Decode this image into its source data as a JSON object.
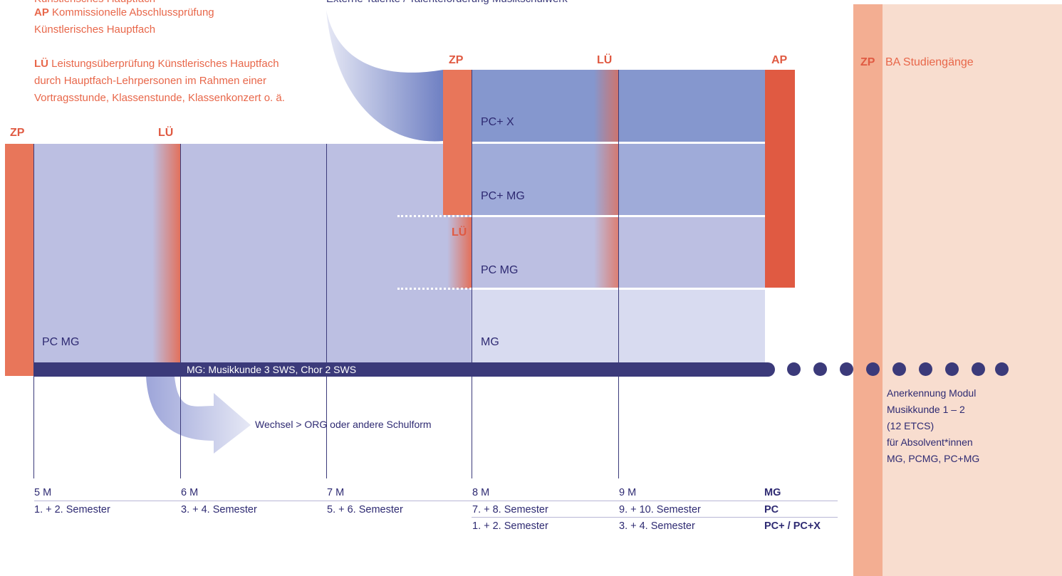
{
  "legend": {
    "line0": "Künstlerisches Hauptfach",
    "ap_abbr": "AP",
    "ap_text": "Kommissionelle Abschlussprüfung",
    "ap_text2": "Künstlerisches Hauptfach",
    "lu_abbr": "LÜ",
    "lu_text": "Leistungsüberprüfung Künstlerisches Hauptfach",
    "lu_text2": "durch Hauptfach-Lehrpersonen im Rahmen einer",
    "lu_text3": "Vortragsstunde, Klassenstunde, Klassenkonzert o. ä."
  },
  "external_label": "Externe Talente / Talenteförderung Musikschulwerk",
  "markers": {
    "zp_left": "ZP",
    "lu_left": "LÜ",
    "zp_mid": "ZP",
    "lu_top": "LÜ",
    "ap": "AP",
    "lu_small": "LÜ",
    "zp_ba": "ZP",
    "ba_label": "BA Studiengänge"
  },
  "cells": {
    "pcx": "PC+ X",
    "pcmg_plus": "PC+ MG",
    "pcmg": "PC MG",
    "mg": "MG",
    "pcmg_left": "PC MG"
  },
  "band": "MG: Musikkunde 3 SWS, Chor 2 SWS",
  "wechsel": "Wechsel > ORG oder andere Schulform",
  "ba_note": [
    "Anerkennung Modul",
    "Musikkunde 1 – 2",
    "(12 ETCS)",
    "für Absolvent*innen",
    "MG, PCMG, PC+MG"
  ],
  "axis": {
    "levels": [
      "5 M",
      "6 M",
      "7 M",
      "8 M",
      "9 M"
    ],
    "semesters": [
      "1. + 2. Semester",
      "3. + 4. Semester",
      "5. + 6. Semester",
      "7. + 8. Semester",
      "9. + 10. Semester"
    ],
    "semesters_plus": [
      "1. + 2. Semester",
      "3. + 4. Semester"
    ],
    "row_labels": [
      "MG",
      "PC",
      "PC+ / PC+X"
    ]
  },
  "colors": {
    "accent": "#E8674A",
    "navy": "#3B3A7A",
    "band_light": "#BCBFE2",
    "band_mid": "#9FABD9",
    "band_dark": "#8597CE",
    "ba_column": "#F8DDCF"
  }
}
